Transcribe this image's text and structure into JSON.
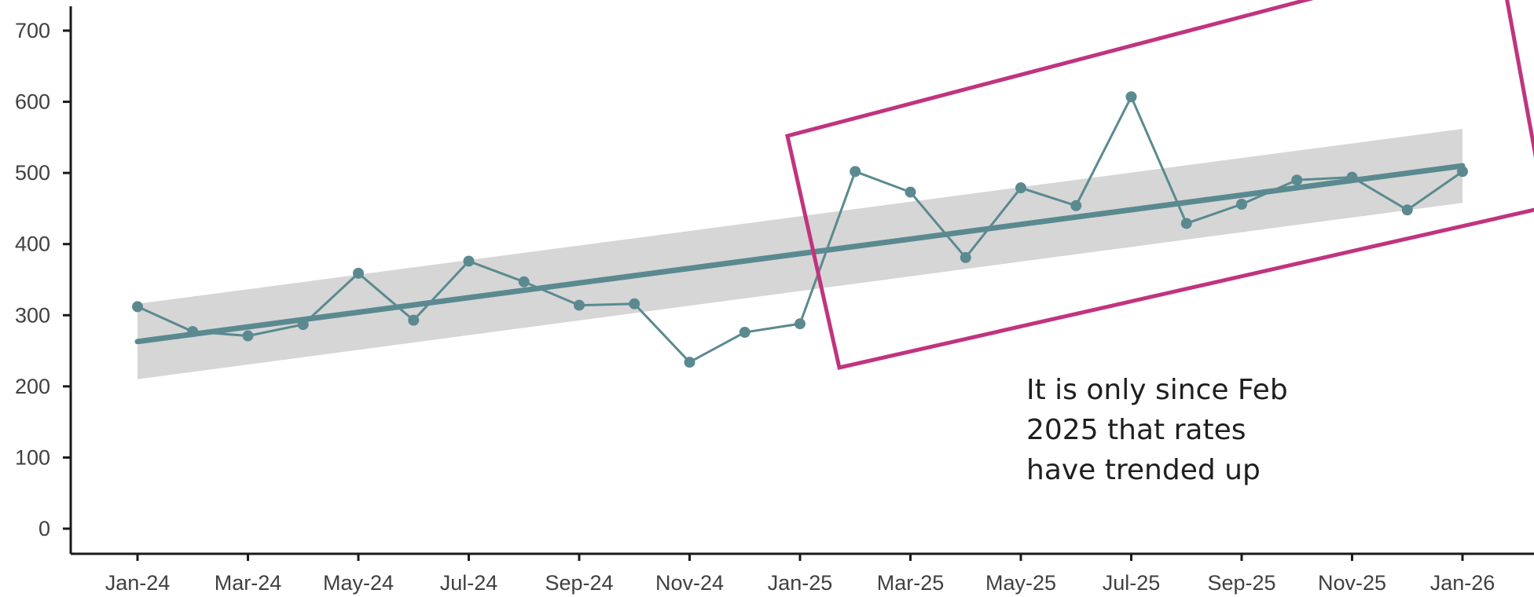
{
  "chart_data": {
    "type": "line",
    "title": "",
    "xlabel": "",
    "ylabel": "",
    "ylim": [
      0,
      700
    ],
    "yticks": [
      0,
      100,
      200,
      300,
      400,
      500,
      600,
      700
    ],
    "x": [
      "Jan-24",
      "Feb-24",
      "Mar-24",
      "Apr-24",
      "May-24",
      "Jun-24",
      "Jul-24",
      "Aug-24",
      "Sep-24",
      "Oct-24",
      "Nov-24",
      "Dec-24",
      "Jan-25",
      "Feb-25",
      "Mar-25",
      "Apr-25",
      "May-25",
      "Jun-25",
      "Jul-25",
      "Aug-25",
      "Sep-25",
      "Oct-25",
      "Nov-25",
      "Dec-25",
      "Jan-26"
    ],
    "xtick_labels": [
      "Jan-24",
      "Mar-24",
      "May-24",
      "Jul-24",
      "Sep-24",
      "Nov-24",
      "Jan-25",
      "Mar-25",
      "May-25",
      "Jul-25",
      "Sep-25",
      "Nov-25",
      "Jan-26"
    ],
    "series": [
      {
        "values": [
          312,
          277,
          271,
          287,
          359,
          293,
          376,
          347,
          314,
          316,
          234,
          276,
          288,
          502,
          473,
          381,
          479,
          454,
          607,
          429,
          456,
          490,
          494,
          448,
          502
        ],
        "color": "#5a8a90"
      }
    ],
    "trend": {
      "start": 263,
      "end": 510,
      "band_start": [
        210,
        316
      ],
      "band_end": [
        458,
        562
      ],
      "color": "#5a8a90",
      "band_color": "#d6d6d6"
    },
    "highlight_box": {
      "from": "Jan-25",
      "to": "Jan-26",
      "color": "#c0347f"
    },
    "annotation": {
      "lines": [
        "It is only since Feb",
        "2025 that rates",
        "have trended up"
      ]
    },
    "grid": false,
    "legend": "none"
  }
}
